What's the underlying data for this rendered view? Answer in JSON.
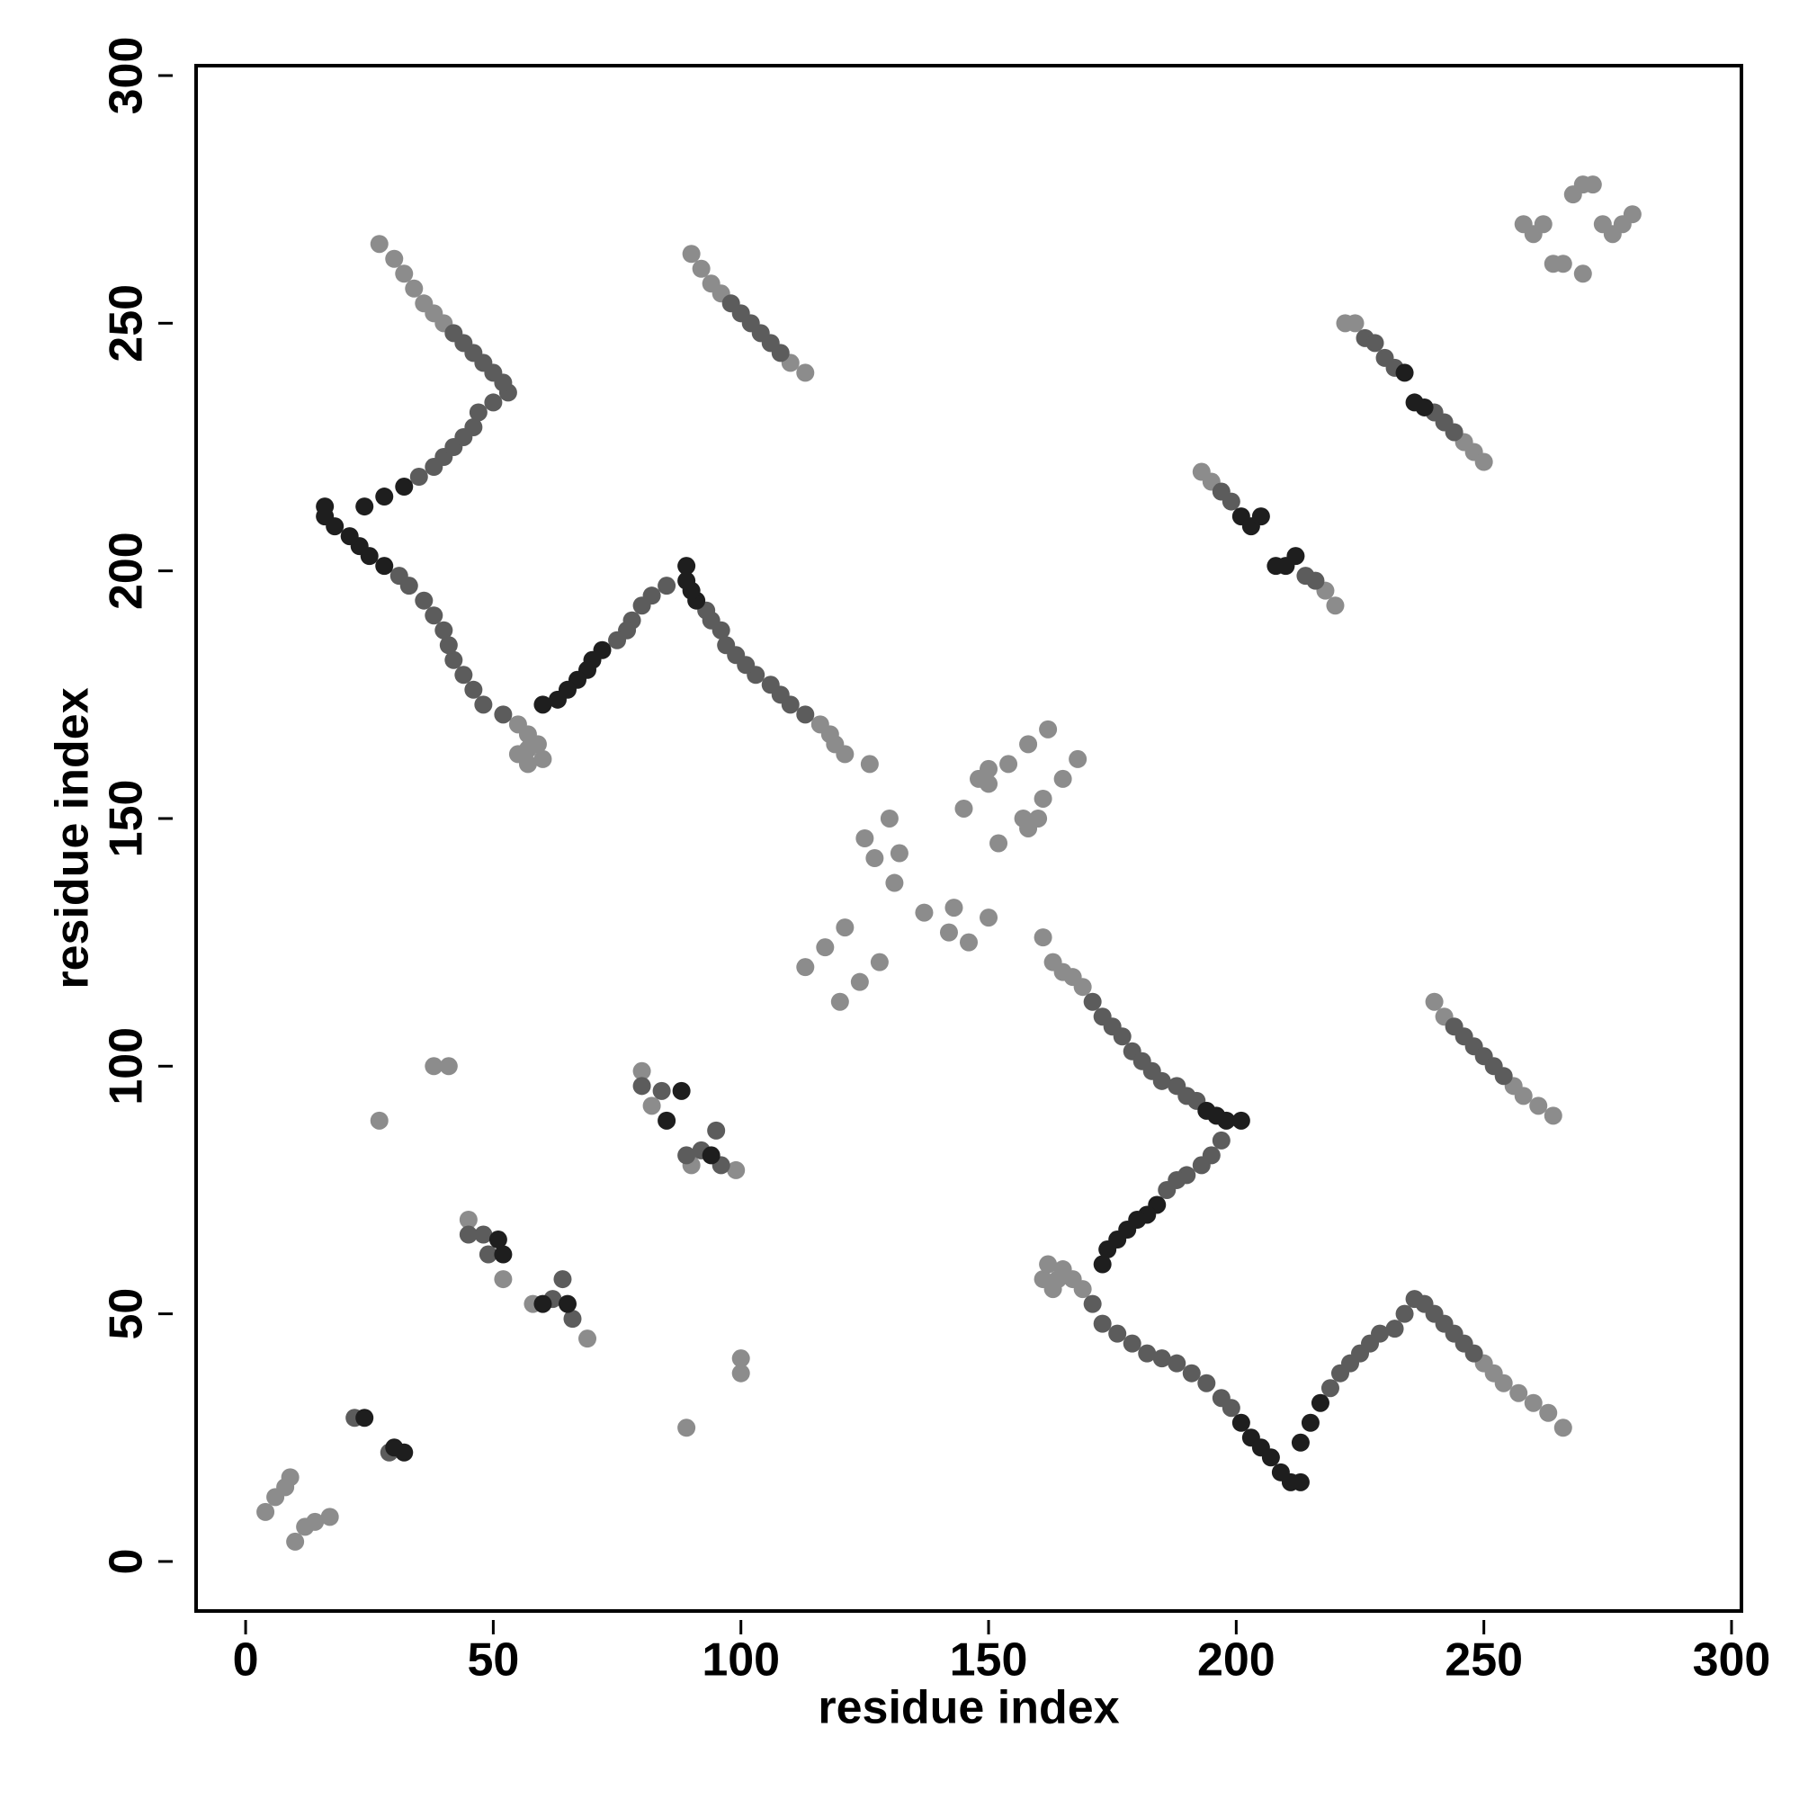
{
  "chart_data": {
    "type": "scatter",
    "xlabel": "residue index",
    "ylabel": "residue index",
    "xlim": [
      -10,
      302
    ],
    "ylim": [
      -10,
      302
    ],
    "xticks": [
      0,
      50,
      100,
      150,
      200,
      250,
      300
    ],
    "yticks": [
      0,
      50,
      100,
      150,
      200,
      250,
      300
    ],
    "series": [
      {
        "color": "#8c8c8c",
        "x": [
          4,
          6,
          8,
          9,
          10,
          12,
          14,
          17,
          27,
          89,
          38,
          41,
          100,
          100,
          161,
          163,
          165,
          167,
          169,
          162,
          164,
          57,
          55,
          59,
          57,
          55,
          60,
          57,
          250,
          252,
          254,
          257,
          260,
          263,
          266,
          40,
          38,
          36,
          34,
          32,
          30,
          27,
          161,
          163,
          165,
          167,
          169,
          126,
          121,
          119,
          118,
          116,
          113,
          117,
          121,
          128,
          124,
          120,
          150,
          154,
          158,
          162,
          157,
          161,
          165,
          168,
          125,
          127,
          130,
          132,
          131,
          137,
          143,
          150,
          142,
          146,
          145,
          152,
          148,
          158,
          150,
          160,
          258,
          260,
          262,
          264,
          266,
          270,
          268,
          270,
          272,
          274,
          276,
          278,
          280,
          240,
          242,
          256,
          258,
          261,
          264,
          113,
          110,
          96,
          94,
          92,
          90,
          193,
          195,
          218,
          220,
          222,
          224,
          246,
          248,
          250,
          80,
          82,
          90,
          99,
          45,
          52,
          58,
          69
        ],
        "y": [
          10,
          13,
          15,
          17,
          4,
          7,
          8,
          9,
          89,
          27,
          100,
          100,
          38,
          41,
          57,
          55,
          59,
          57,
          55,
          60,
          57,
          161,
          163,
          165,
          167,
          169,
          162,
          164,
          40,
          38,
          36,
          34,
          32,
          30,
          27,
          250,
          252,
          254,
          257,
          260,
          263,
          266,
          126,
          121,
          119,
          118,
          116,
          161,
          163,
          165,
          167,
          169,
          120,
          124,
          128,
          121,
          117,
          113,
          157,
          161,
          165,
          168,
          150,
          154,
          158,
          162,
          146,
          142,
          150,
          143,
          137,
          131,
          132,
          130,
          127,
          125,
          152,
          145,
          158,
          148,
          160,
          150,
          270,
          268,
          270,
          262,
          262,
          260,
          276,
          278,
          278,
          270,
          268,
          270,
          272,
          113,
          110,
          96,
          94,
          92,
          90,
          240,
          242,
          256,
          258,
          261,
          264,
          220,
          218,
          196,
          193,
          250,
          250,
          226,
          224,
          222,
          99,
          92,
          80,
          79,
          69,
          57,
          52,
          45
        ]
      },
      {
        "color": "#5c5c5c",
        "x": [
          171,
          173,
          175,
          177,
          179,
          181,
          183,
          185,
          188,
          190,
          192,
          113,
          110,
          108,
          106,
          103,
          101,
          99,
          97,
          96,
          94,
          93,
          197,
          195,
          193,
          190,
          188,
          186,
          85,
          82,
          80,
          78,
          77,
          75,
          171,
          173,
          176,
          179,
          182,
          185,
          188,
          191,
          194,
          197,
          199,
          52,
          48,
          46,
          44,
          42,
          41,
          40,
          38,
          36,
          33,
          31,
          219,
          221,
          223,
          225,
          227,
          229,
          232,
          234,
          236,
          238,
          240,
          242,
          244,
          246,
          248,
          35,
          38,
          40,
          42,
          44,
          46,
          47,
          50,
          53,
          52,
          50,
          48,
          46,
          44,
          42,
          244,
          246,
          248,
          250,
          252,
          254,
          108,
          106,
          104,
          102,
          100,
          98,
          197,
          199,
          214,
          216,
          226,
          228,
          230,
          232,
          240,
          242,
          244,
          45,
          48,
          49,
          66,
          62,
          64,
          80,
          84,
          89,
          92,
          95,
          96,
          22,
          29
        ],
        "y": [
          113,
          110,
          108,
          106,
          103,
          101,
          99,
          97,
          96,
          94,
          93,
          171,
          173,
          175,
          177,
          179,
          181,
          183,
          185,
          188,
          190,
          192,
          85,
          82,
          80,
          78,
          77,
          75,
          197,
          195,
          193,
          190,
          188,
          186,
          52,
          48,
          46,
          44,
          42,
          41,
          40,
          38,
          36,
          33,
          31,
          171,
          173,
          176,
          179,
          182,
          185,
          188,
          191,
          194,
          197,
          199,
          35,
          38,
          40,
          42,
          44,
          46,
          47,
          50,
          53,
          52,
          50,
          48,
          46,
          44,
          42,
          219,
          221,
          223,
          225,
          227,
          229,
          232,
          234,
          236,
          238,
          240,
          242,
          244,
          246,
          248,
          108,
          106,
          104,
          102,
          100,
          98,
          244,
          246,
          248,
          250,
          252,
          254,
          216,
          214,
          199,
          198,
          247,
          246,
          243,
          241,
          232,
          230,
          228,
          66,
          66,
          62,
          49,
          53,
          57,
          96,
          95,
          82,
          83,
          87,
          80,
          29,
          22
        ]
      },
      {
        "color": "#1e1e1e",
        "x": [
          194,
          196,
          198,
          201,
          91,
          90,
          89,
          89,
          184,
          182,
          180,
          178,
          176,
          174,
          173,
          72,
          70,
          69,
          67,
          65,
          63,
          60,
          201,
          203,
          205,
          207,
          209,
          211,
          213,
          28,
          25,
          23,
          21,
          18,
          16,
          16,
          213,
          215,
          217,
          24,
          28,
          32,
          201,
          203,
          205,
          208,
          210,
          212,
          234,
          236,
          238,
          51,
          52,
          60,
          65,
          85,
          88,
          94,
          24,
          30,
          32
        ],
        "y": [
          91,
          90,
          89,
          89,
          194,
          196,
          198,
          201,
          72,
          70,
          69,
          67,
          65,
          63,
          60,
          184,
          182,
          180,
          178,
          176,
          174,
          173,
          28,
          25,
          23,
          21,
          18,
          16,
          16,
          201,
          203,
          205,
          207,
          209,
          211,
          213,
          24,
          28,
          32,
          213,
          215,
          217,
          211,
          209,
          211,
          201,
          201,
          203,
          240,
          234,
          233,
          65,
          62,
          52,
          52,
          89,
          95,
          82,
          29,
          23,
          22
        ]
      }
    ]
  }
}
